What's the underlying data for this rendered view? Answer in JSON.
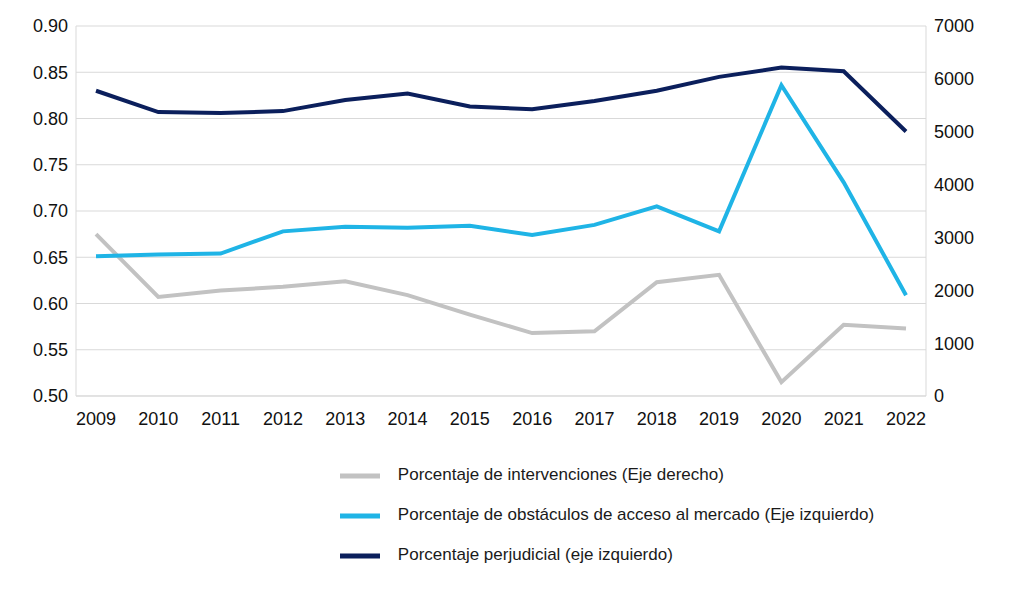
{
  "chart_data": {
    "type": "line",
    "categories": [
      "2009",
      "2010",
      "2011",
      "2012",
      "2013",
      "2014",
      "2015",
      "2016",
      "2017",
      "2018",
      "2019",
      "2020",
      "2021",
      "2022"
    ],
    "series": [
      {
        "name": "Porcentaje perjudicial (eje izquierdo)",
        "color": "#0b1f5c",
        "axis": "y",
        "values": [
          0.83,
          0.807,
          0.806,
          0.808,
          0.82,
          0.827,
          0.813,
          0.81,
          0.819,
          0.83,
          0.845,
          0.855,
          0.851,
          0.786
        ]
      },
      {
        "name": "Porcentaje de intervenciones (Eje derecho)",
        "color": "#c2c2c2",
        "axis": "y2",
        "values": [
          3063,
          1873,
          1995,
          2065,
          2170,
          1908,
          1540,
          1190,
          1225,
          2153,
          2293,
          263,
          1348,
          1278
        ]
      },
      {
        "name": "Porcentaje de obstáculos de acceso al mercado (Eje izquierdo)",
        "color": "#1fb4e6",
        "axis": "y",
        "values": [
          0.651,
          0.653,
          0.654,
          0.678,
          0.683,
          0.682,
          0.684,
          0.674,
          0.685,
          0.705,
          0.678,
          0.836,
          0.731,
          0.609
        ]
      }
    ],
    "ylim": [
      0.5,
      0.9
    ],
    "yticks": [
      {
        "value": 0.5,
        "label": "0.50"
      },
      0.55,
      {
        "value": 0.6,
        "label": "0.60"
      },
      0.65,
      {
        "value": 0.7,
        "label": "0.70"
      },
      0.75,
      {
        "value": 0.8,
        "label": "0.80"
      },
      0.85,
      {
        "value": 0.9,
        "label": "0.90"
      }
    ],
    "y2lim": [
      0,
      7000
    ],
    "y2ticks": [
      0,
      1000,
      2000,
      3000,
      4000,
      5000,
      6000,
      7000
    ],
    "grid": true,
    "legend": "bottom"
  }
}
